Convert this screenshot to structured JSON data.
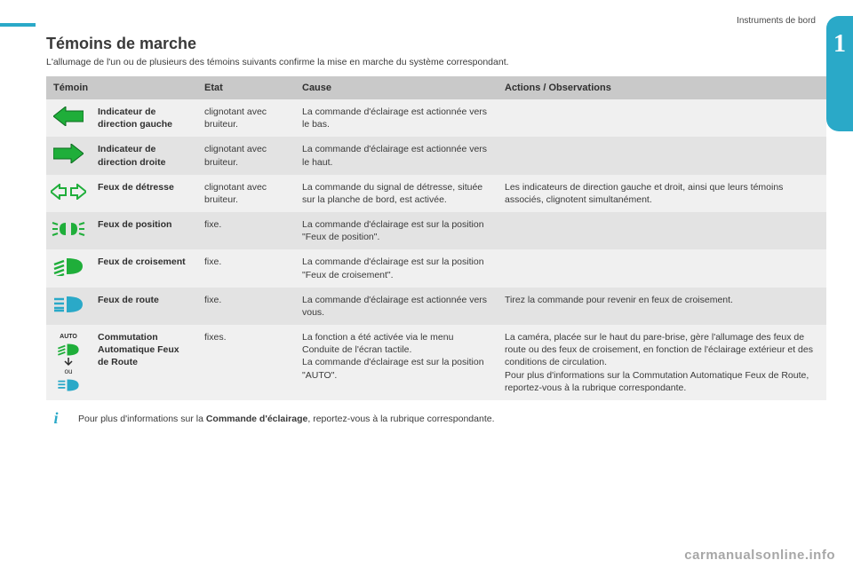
{
  "colors": {
    "accent": "#2aa9c8",
    "icon_green": "#1fae3a",
    "header_bg": "#c9c9c9",
    "row_odd": "#f0f0f0",
    "row_even": "#e3e3e3",
    "text": "#3a3a3a"
  },
  "tab_number": "1",
  "breadcrumb": "Instruments de bord",
  "title": "Témoins de marche",
  "intro": "L'allumage de l'un ou de plusieurs des témoins suivants confirme la mise en marche du système correspondant.",
  "headers": {
    "temoin": "Témoin",
    "etat": "Etat",
    "cause": "Cause",
    "actions": "Actions / Observations"
  },
  "rows": [
    {
      "icon": "arrow-left",
      "label": "Indicateur de direction gauche",
      "etat": "clignotant avec bruiteur.",
      "cause": "La commande d'éclairage est actionnée vers le bas.",
      "actions": ""
    },
    {
      "icon": "arrow-right",
      "label": "Indicateur de direction droite",
      "etat": "clignotant avec bruiteur.",
      "cause": "La commande d'éclairage est actionnée vers le haut.",
      "actions": ""
    },
    {
      "icon": "hazard",
      "label": "Feux de détresse",
      "etat": "clignotant avec bruiteur.",
      "cause": "La commande du signal de détresse, située sur la planche de bord, est activée.",
      "actions": "Les indicateurs de direction gauche et droit, ainsi que leurs témoins associés, clignotent simultanément."
    },
    {
      "icon": "sidelights",
      "label": "Feux de position",
      "etat": "fixe.",
      "cause": "La commande d'éclairage est sur la position \"Feux de position\".",
      "actions": ""
    },
    {
      "icon": "lowbeam",
      "label": "Feux de croisement",
      "etat": "fixe.",
      "cause": "La commande d'éclairage est sur la position \"Feux de croisement\".",
      "actions": ""
    },
    {
      "icon": "highbeam",
      "label": "Feux de route",
      "etat": "fixe.",
      "cause": "La commande d'éclairage est actionnée vers vous.",
      "actions": "Tirez la commande pour revenir en feux de croisement."
    },
    {
      "icon": "autobeam",
      "label": "Commutation Automatique Feux de Route",
      "etat": "fixes.",
      "cause": "La fonction a été activée via le menu Conduite de l'écran tactile.\nLa commande d'éclairage est sur la position \"AUTO\".",
      "actions": "La caméra, placée sur le haut du pare-brise, gère l'allumage des feux de route ou des feux de croisement, en fonction de l'éclairage extérieur et des conditions de circulation.\nPour plus d'informations sur la Commutation Automatique Feux de Route, reportez-vous à la rubrique correspondante."
    }
  ],
  "info_note_prefix": "Pour plus d'informations sur la ",
  "info_note_bold": "Commande d'éclairage",
  "info_note_suffix": ", reportez-vous à la rubrique correspondante.",
  "watermark": "carmanualsonline.info"
}
